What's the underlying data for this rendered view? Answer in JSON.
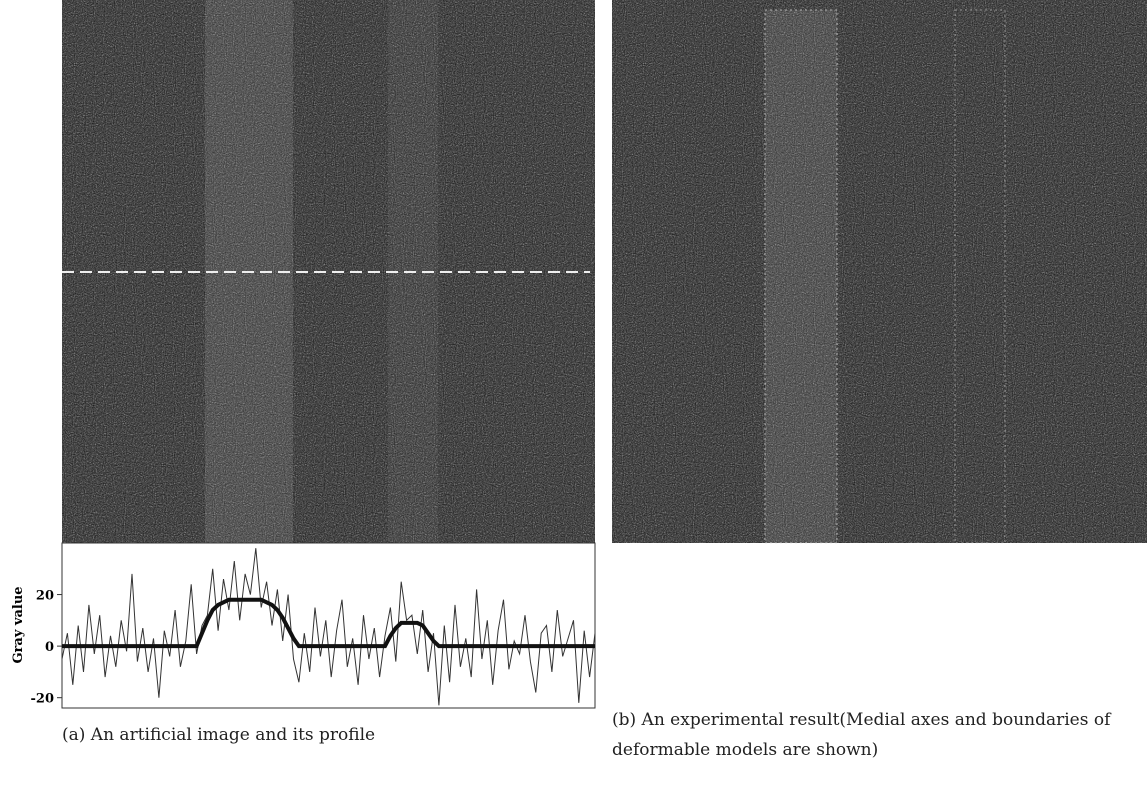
{
  "panel_a": {
    "caption": "(a) An artificial image and its profile"
  },
  "panel_b": {
    "caption": "(b) An experimental result(Medial axes and boundaries of deformable models are shown)"
  },
  "chart_data": {
    "type": "line",
    "y_label": "Gray value",
    "ylim": [
      -24,
      40
    ],
    "yticks": [
      20,
      0,
      -20
    ],
    "series": [
      {
        "color": "#333333",
        "values": [
          -5,
          5,
          -15,
          8,
          -10,
          16,
          -3,
          12,
          -12,
          4,
          -8,
          10,
          -2,
          28,
          -6,
          7,
          -10,
          3,
          -20,
          6,
          -4,
          14,
          -8,
          2,
          24,
          -3,
          8,
          12,
          30,
          6,
          26,
          14,
          33,
          10,
          28,
          20,
          38,
          15,
          25,
          8,
          22,
          2,
          20,
          -5,
          -14,
          5,
          -10,
          15,
          -4,
          10,
          -12,
          6,
          18,
          -8,
          3,
          -15,
          12,
          -5,
          7,
          -12,
          4,
          15,
          -6,
          25,
          10,
          12,
          -3,
          14,
          -10,
          5,
          -23,
          8,
          -14,
          16,
          -8,
          3,
          -12,
          22,
          -5,
          10,
          -15,
          6,
          18,
          -9,
          2,
          -3,
          12,
          -6,
          -18,
          5,
          8,
          -10,
          14,
          -4,
          3,
          10,
          -22,
          6,
          -12,
          5
        ]
      },
      {
        "color": "#111111",
        "values": [
          0,
          0,
          0,
          0,
          0,
          0,
          0,
          0,
          0,
          0,
          0,
          0,
          0,
          0,
          0,
          0,
          0,
          0,
          0,
          0,
          0,
          0,
          0,
          0,
          0,
          0,
          5,
          10,
          14,
          16,
          17,
          18,
          18,
          18,
          18,
          18,
          18,
          18,
          17,
          16,
          14,
          11,
          7,
          3,
          0,
          0,
          0,
          0,
          0,
          0,
          0,
          0,
          0,
          0,
          0,
          0,
          0,
          0,
          0,
          0,
          0,
          4,
          7,
          9,
          9,
          9,
          9,
          8,
          5,
          2,
          0,
          0,
          0,
          0,
          0,
          0,
          0,
          0,
          0,
          0,
          0,
          0,
          0,
          0,
          0,
          0,
          0,
          0,
          0,
          0,
          0,
          0,
          0,
          0,
          0,
          0,
          0,
          0,
          0,
          0
        ]
      }
    ]
  }
}
